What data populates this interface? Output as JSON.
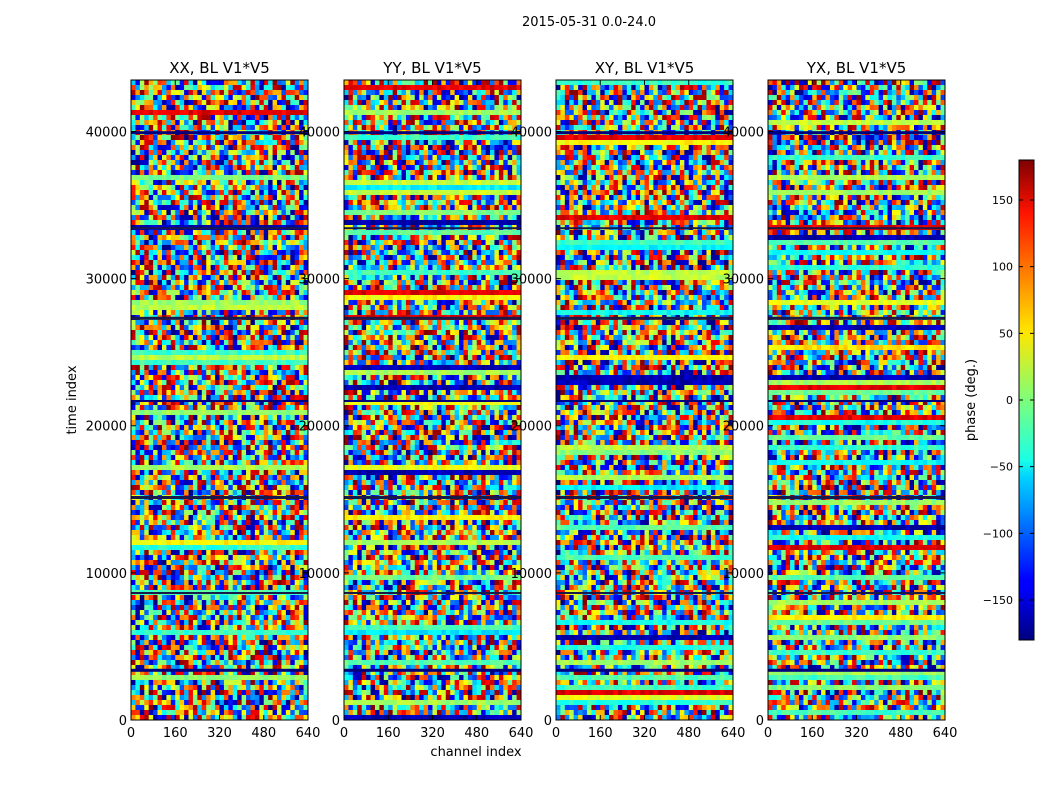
{
  "figure": {
    "suptitle": "2015-05-31 0.0-24.0"
  },
  "chart_data": {
    "type": "heatmap",
    "xlabel": "channel index",
    "ylabel": "time index",
    "xlim": [
      0,
      640
    ],
    "ylim": [
      0,
      43500
    ],
    "x_ticks": [
      0,
      160,
      320,
      480,
      640
    ],
    "x_tick_labels": [
      "0",
      "160",
      "320",
      "480",
      "640"
    ],
    "y_ticks": [
      0,
      10000,
      20000,
      30000,
      40000
    ],
    "y_tick_labels": [
      "0",
      "10000",
      "20000",
      "30000",
      "40000"
    ],
    "colormap": "jet",
    "panels": [
      {
        "title": "XX, BL V1*V5"
      },
      {
        "title": "YY, BL V1*V5"
      },
      {
        "title": "XY, BL V1*V5"
      },
      {
        "title": "YX, BL V1*V5"
      }
    ],
    "colorbar": {
      "label": "phase (deg.)",
      "range": [
        -180,
        180
      ],
      "ticks": [
        -150,
        -100,
        -50,
        0,
        50,
        100,
        150
      ],
      "tick_labels": [
        "−150",
        "−100",
        "−50",
        "0",
        "50",
        "100",
        "150"
      ]
    }
  }
}
